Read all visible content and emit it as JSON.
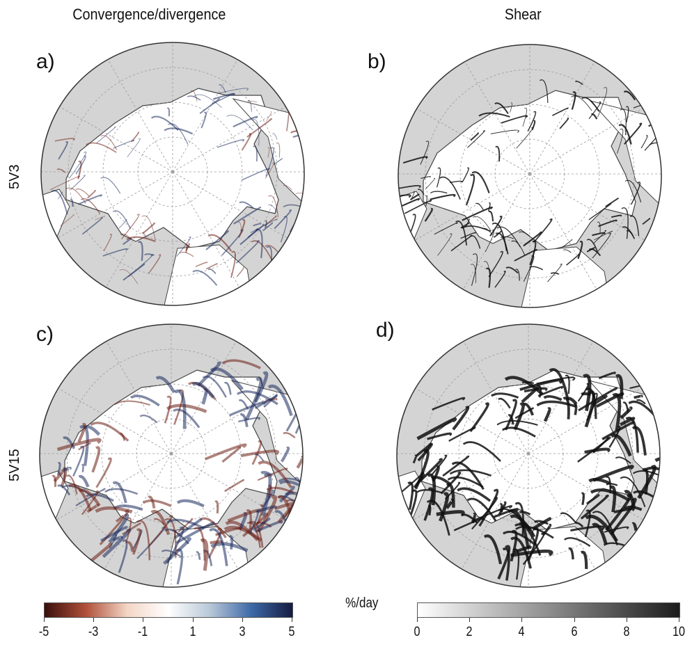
{
  "column_titles": {
    "left": "Convergence/divergence",
    "right": "Shear"
  },
  "row_labels": {
    "top": "5V3",
    "bottom": "5V15"
  },
  "panels": [
    {
      "label": "a)",
      "variable": "convergence",
      "row": "5V3"
    },
    {
      "label": "b)",
      "variable": "shear",
      "row": "5V3"
    },
    {
      "label": "c)",
      "variable": "convergence",
      "row": "5V15"
    },
    {
      "label": "d)",
      "variable": "shear",
      "row": "5V15"
    }
  ],
  "colors": {
    "land": "#d4d4d4",
    "ocean": "#ffffff",
    "coast": "#444444",
    "graticule": "#9a9a9a",
    "convergence": "#6b1d12",
    "divergence": "#1a2a5c"
  },
  "colorbars": {
    "unit": "%/day",
    "divergence": {
      "min": -5,
      "max": 5,
      "ticks": [
        "-5",
        "-3",
        "-1",
        "1",
        "3",
        "5"
      ],
      "colors": [
        "#3a0f0c",
        "#b0503a",
        "#f3d6c6",
        "#ffffff",
        "#b9c8d8",
        "#3e6aa8",
        "#151b40"
      ]
    },
    "shear": {
      "min": 0,
      "max": 10,
      "ticks": [
        "0",
        "2",
        "4",
        "6",
        "8",
        "10"
      ],
      "colors": [
        "#ffffff",
        "#1c1c1c"
      ]
    }
  }
}
